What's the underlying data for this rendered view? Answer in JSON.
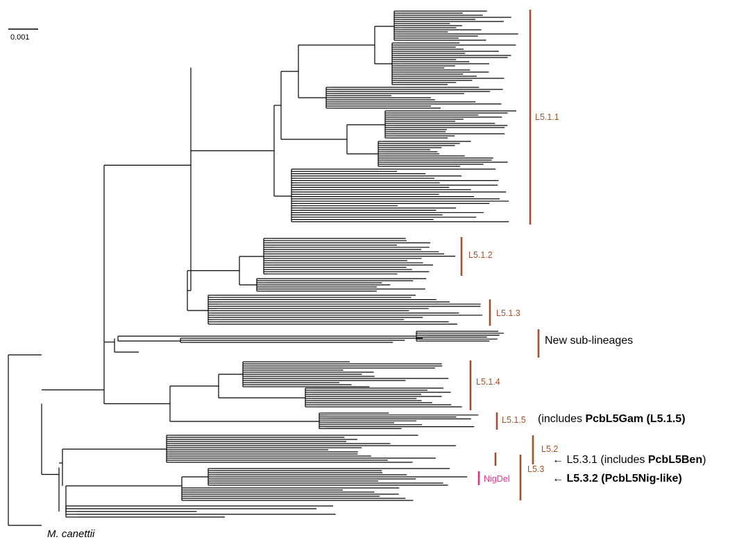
{
  "scale_bar": {
    "label": "0.001"
  },
  "outgroup_label": "M. canettii",
  "colors": {
    "branch": "#000000",
    "clade_bar": "#a0522d",
    "nigdel": "#e6338b"
  },
  "clades": [
    {
      "id": "l511",
      "label": "L5.1.1"
    },
    {
      "id": "l512",
      "label": "L5.1.2"
    },
    {
      "id": "l513",
      "label": "L5.1.3"
    },
    {
      "id": "new",
      "label": "New sub-lineages"
    },
    {
      "id": "l514",
      "label": "L5.1.4"
    },
    {
      "id": "l515",
      "label": "L5.1.5"
    },
    {
      "id": "l52",
      "label": "L5.2"
    },
    {
      "id": "l53",
      "label": "L5.3"
    },
    {
      "id": "nigdel",
      "label": "NigDel"
    }
  ],
  "notes": {
    "l515": {
      "pre": "(includes ",
      "bold": "PcbL5Gam (L5.1.5)",
      "post": ""
    },
    "l531": {
      "pre": "← L5.3.1 (includes ",
      "bold": "PcbL5Ben",
      "post": ")"
    },
    "l532": {
      "pre": "← ",
      "bold": "L5.3.2 (PcbL5Nig-like)",
      "post": ""
    }
  }
}
